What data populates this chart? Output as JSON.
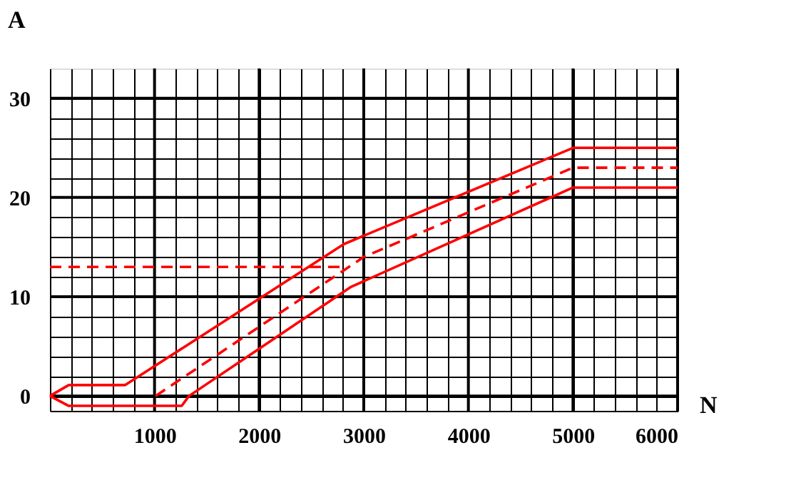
{
  "chart_data": {
    "type": "line",
    "xlabel": "N",
    "ylabel": "A",
    "xlim": [
      0,
      6000
    ],
    "ylim": [
      -1.5,
      33
    ],
    "xticks": [
      {
        "value": 0,
        "label": null
      },
      {
        "value": 200,
        "label": null
      },
      {
        "value": 400,
        "label": null
      },
      {
        "value": 600,
        "label": null
      },
      {
        "value": 800,
        "label": null
      },
      1000,
      {
        "value": 1200,
        "label": null
      },
      {
        "value": 1400,
        "label": null
      },
      {
        "value": 1600,
        "label": null
      },
      {
        "value": 1800,
        "label": null
      },
      2000,
      {
        "value": 2200,
        "label": null
      },
      {
        "value": 2400,
        "label": null
      },
      {
        "value": 2600,
        "label": null
      },
      {
        "value": 2800,
        "label": null
      },
      3000,
      {
        "value": 3200,
        "label": null
      },
      {
        "value": 3400,
        "label": null
      },
      {
        "value": 3600,
        "label": null
      },
      {
        "value": 3800,
        "label": null
      },
      4000,
      {
        "value": 4200,
        "label": null
      },
      {
        "value": 4400,
        "label": null
      },
      {
        "value": 4600,
        "label": null
      },
      {
        "value": 4800,
        "label": null
      },
      5000,
      {
        "value": 5200,
        "label": null
      },
      {
        "value": 5400,
        "label": null
      },
      {
        "value": 5600,
        "label": null
      },
      {
        "value": 5800,
        "label": null
      },
      6000
    ],
    "yticks": [
      0,
      {
        "value": 2,
        "label": null
      },
      {
        "value": 4,
        "label": null
      },
      {
        "value": 6,
        "label": null
      },
      {
        "value": 8,
        "label": null
      },
      10,
      {
        "value": 12,
        "label": null
      },
      {
        "value": 14,
        "label": null
      },
      {
        "value": 16,
        "label": null
      },
      {
        "value": 18,
        "label": null
      },
      20,
      {
        "value": 22,
        "label": null
      },
      {
        "value": 24,
        "label": null
      },
      {
        "value": 26,
        "label": null
      },
      {
        "value": 28,
        "label": null
      },
      30
    ],
    "grid": true,
    "marker": "none",
    "series": [
      {
        "color": "#ff0000",
        "line_style": "solid",
        "x": [
          0,
          180,
          720,
          2810,
          5000,
          6000
        ],
        "values": [
          0,
          1.1,
          1.1,
          15.3,
          25,
          25
        ]
      },
      {
        "color": "#ff0000",
        "line_style": "dashed",
        "x": [
          0,
          2810
        ],
        "values": [
          13,
          13
        ]
      },
      {
        "color": "#ff0000",
        "line_style": "dashed",
        "x": [
          1010,
          3000,
          5000,
          6000
        ],
        "values": [
          0,
          14,
          23,
          23
        ]
      },
      {
        "color": "#ff0000",
        "line_style": "solid",
        "x": [
          0,
          180,
          1260,
          1330,
          2880,
          5000,
          6000
        ],
        "values": [
          0,
          -1,
          -1,
          0,
          11,
          21,
          21
        ]
      }
    ]
  }
}
